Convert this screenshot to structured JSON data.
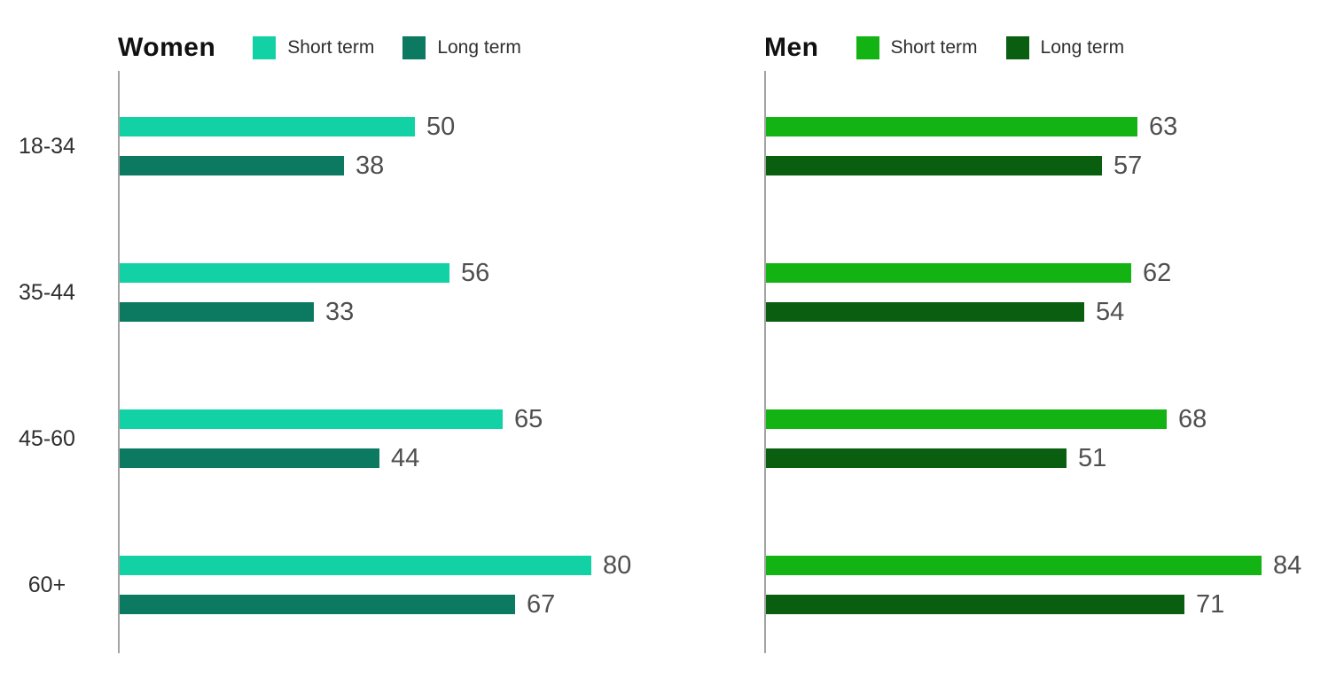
{
  "chart_data": [
    {
      "type": "bar",
      "orientation": "horizontal",
      "title": "Women",
      "categories": [
        "18-34",
        "35-44",
        "45-60",
        "60+"
      ],
      "series": [
        {
          "name": "Short term",
          "color": "#12d2a5",
          "values": [
            50,
            56,
            65,
            80
          ]
        },
        {
          "name": "Long term",
          "color": "#0b7a60",
          "values": [
            38,
            33,
            44,
            67
          ]
        }
      ],
      "xlim": [
        0,
        100
      ],
      "value_labels": true,
      "legend_position": "top",
      "grid": false,
      "axis_color": "#a3a3a3",
      "show_category_labels": true
    },
    {
      "type": "bar",
      "orientation": "horizontal",
      "title": "Men",
      "categories": [
        "18-34",
        "35-44",
        "45-60",
        "60+"
      ],
      "series": [
        {
          "name": "Short term",
          "color": "#12b312",
          "values": [
            63,
            62,
            68,
            84
          ]
        },
        {
          "name": "Long term",
          "color": "#0a5e10",
          "values": [
            57,
            54,
            51,
            71
          ]
        }
      ],
      "xlim": [
        0,
        100
      ],
      "value_labels": true,
      "legend_position": "top",
      "grid": false,
      "axis_color": "#a3a3a3",
      "show_category_labels": false
    }
  ]
}
